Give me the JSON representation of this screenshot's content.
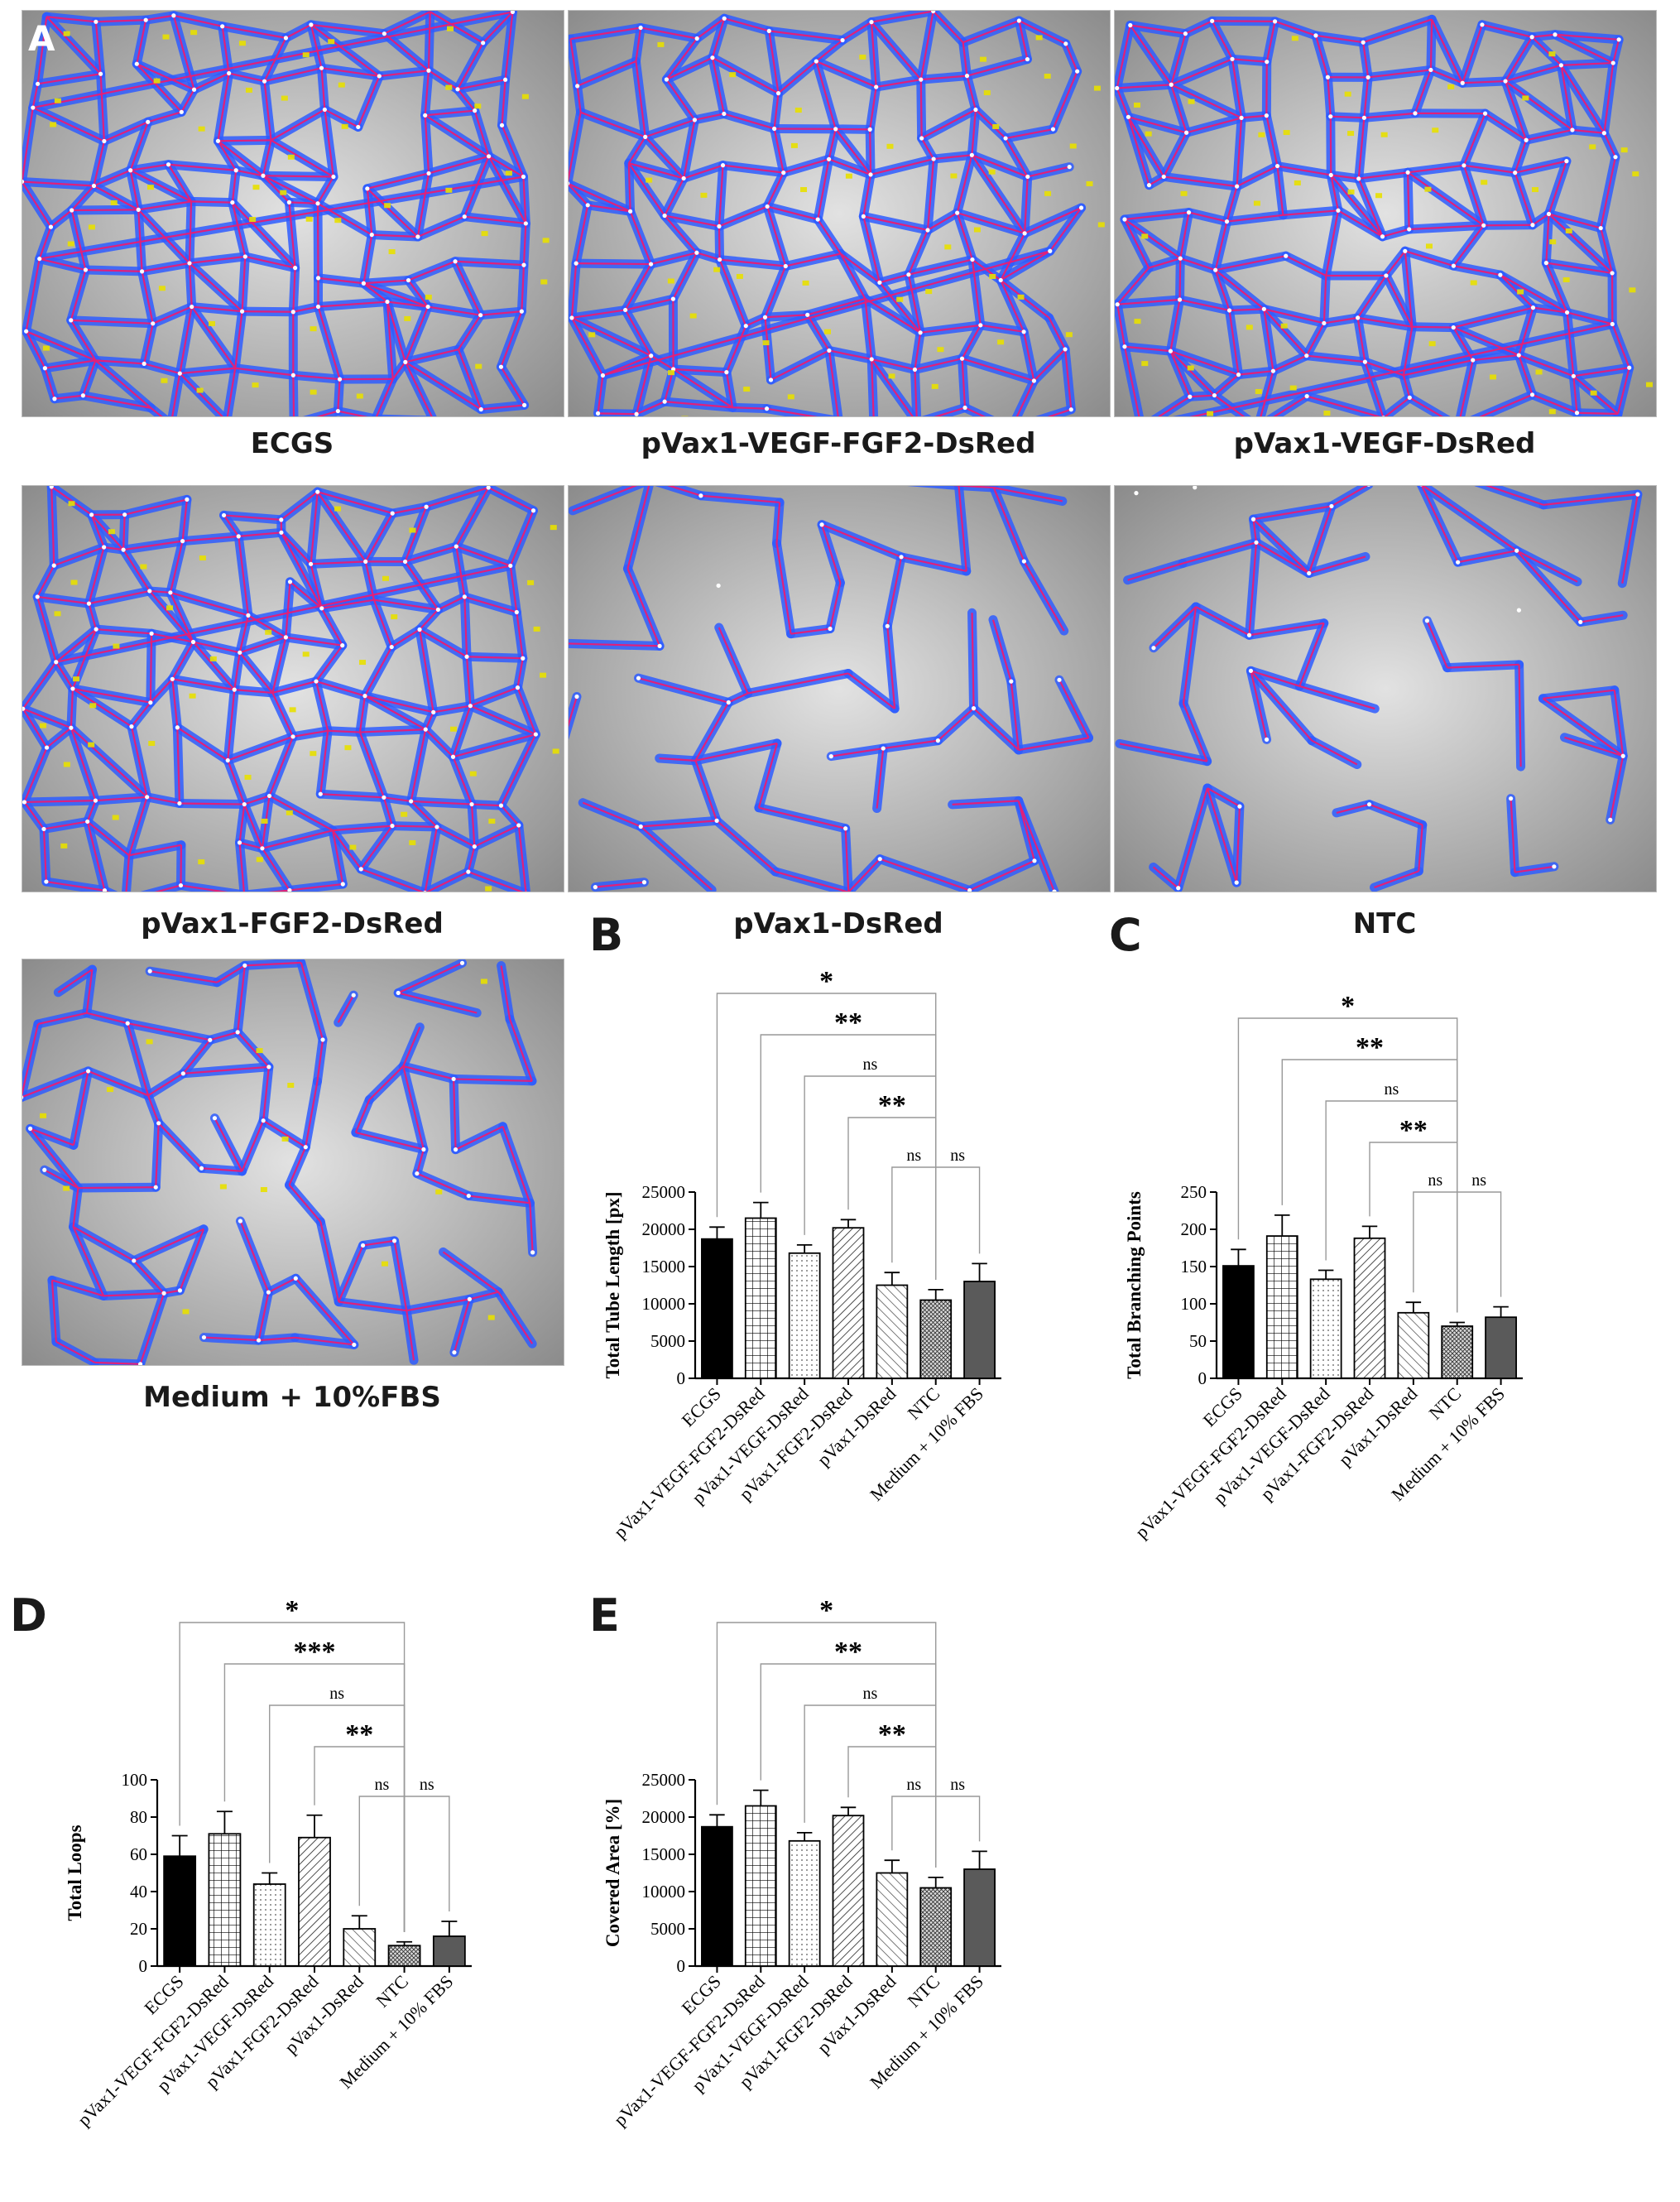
{
  "panel_a": {
    "letter": "A",
    "images": [
      {
        "label": "ECGS",
        "style": "dense"
      },
      {
        "label": "pVax1-VEGF-FGF2-DsRed",
        "style": "dense"
      },
      {
        "label": "pVax1-VEGF-DsRed",
        "style": "dense"
      },
      {
        "label": "pVax1-FGF2-DsRed",
        "style": "dense"
      },
      {
        "label": "pVax1-DsRed",
        "style": "sparse"
      },
      {
        "label": "NTC",
        "style": "sparse"
      },
      {
        "label": "Medium + 10%FBS",
        "style": "medium"
      }
    ],
    "colors": {
      "background": "#c4c4c4",
      "network": "#2f5dff",
      "skeleton": "#e0207a",
      "node": "#ffffff",
      "loop_label": "#e8e000"
    }
  },
  "chart_data": [
    {
      "id": "B",
      "letter": "B",
      "type": "bar",
      "ylabel": "Total Tube Length [px]",
      "categories": [
        "ECGS",
        "pVax1-VEGF-FGF2-DsRed",
        "pVax1-VEGF-DsRed",
        "pVax1-FGF2-DsRed",
        "pVax1-DsRed",
        "NTC",
        "Medium + 10% FBS"
      ],
      "values": [
        18700,
        21500,
        16800,
        20200,
        12500,
        10500,
        13000
      ],
      "errors": [
        1600,
        2100,
        1100,
        1100,
        1700,
        1400,
        2400
      ],
      "ylim": [
        0,
        25000
      ],
      "yticks": [
        0,
        5000,
        10000,
        15000,
        20000,
        25000
      ],
      "significance": [
        {
          "from": 0,
          "to": 5,
          "label": "*"
        },
        {
          "from": 1,
          "to": 5,
          "label": "**"
        },
        {
          "from": 2,
          "to": 5,
          "label": "ns"
        },
        {
          "from": 3,
          "to": 5,
          "label": "**"
        },
        {
          "from": 4,
          "to": 5,
          "label": "ns"
        },
        {
          "from": 5,
          "to": 6,
          "label": "ns"
        }
      ]
    },
    {
      "id": "C",
      "letter": "C",
      "type": "bar",
      "ylabel": "Total Branching Points",
      "categories": [
        "ECGS",
        "pVax1-VEGF-FGF2-DsRed",
        "pVax1-VEGF-DsRed",
        "pVax1-FGF2-DsRed",
        "pVax1-DsRed",
        "NTC",
        "Medium + 10% FBS"
      ],
      "values": [
        151,
        191,
        133,
        188,
        88,
        70,
        82
      ],
      "errors": [
        22,
        28,
        12,
        16,
        14,
        5,
        14
      ],
      "ylim": [
        0,
        250
      ],
      "yticks": [
        0,
        50,
        100,
        150,
        200,
        250
      ],
      "significance": [
        {
          "from": 0,
          "to": 5,
          "label": "*"
        },
        {
          "from": 1,
          "to": 5,
          "label": "**"
        },
        {
          "from": 2,
          "to": 5,
          "label": "ns"
        },
        {
          "from": 3,
          "to": 5,
          "label": "**"
        },
        {
          "from": 4,
          "to": 5,
          "label": "ns"
        },
        {
          "from": 5,
          "to": 6,
          "label": "ns"
        }
      ]
    },
    {
      "id": "D",
      "letter": "D",
      "type": "bar",
      "ylabel": "Total Loops",
      "categories": [
        "ECGS",
        "pVax1-VEGF-FGF2-DsRed",
        "pVax1-VEGF-DsRed",
        "pVax1-FGF2-DsRed",
        "pVax1-DsRed",
        "NTC",
        "Medium + 10% FBS"
      ],
      "values": [
        59,
        71,
        44,
        69,
        20,
        11,
        16
      ],
      "errors": [
        11,
        12,
        6,
        12,
        7,
        2,
        8
      ],
      "ylim": [
        0,
        100
      ],
      "yticks": [
        0,
        20,
        40,
        60,
        80,
        100
      ],
      "significance": [
        {
          "from": 0,
          "to": 5,
          "label": "*"
        },
        {
          "from": 1,
          "to": 5,
          "label": "***"
        },
        {
          "from": 2,
          "to": 5,
          "label": "ns"
        },
        {
          "from": 3,
          "to": 5,
          "label": "**"
        },
        {
          "from": 4,
          "to": 5,
          "label": "ns"
        },
        {
          "from": 5,
          "to": 6,
          "label": "ns"
        }
      ]
    },
    {
      "id": "E",
      "letter": "E",
      "type": "bar",
      "ylabel": "Covered Area [%]",
      "categories": [
        "ECGS",
        "pVax1-VEGF-FGF2-DsRed",
        "pVax1-VEGF-DsRed",
        "pVax1-FGF2-DsRed",
        "pVax1-DsRed",
        "NTC",
        "Medium + 10% FBS"
      ],
      "values": [
        18700,
        21500,
        16800,
        20200,
        12500,
        10500,
        13000
      ],
      "errors": [
        1600,
        2100,
        1100,
        1100,
        1700,
        1400,
        2400
      ],
      "ylim": [
        0,
        25000
      ],
      "yticks": [
        0,
        5000,
        10000,
        15000,
        20000,
        25000
      ],
      "significance": [
        {
          "from": 0,
          "to": 5,
          "label": "*"
        },
        {
          "from": 1,
          "to": 5,
          "label": "**"
        },
        {
          "from": 2,
          "to": 5,
          "label": "ns"
        },
        {
          "from": 3,
          "to": 5,
          "label": "**"
        },
        {
          "from": 4,
          "to": 5,
          "label": "ns"
        },
        {
          "from": 5,
          "to": 6,
          "label": "ns"
        }
      ]
    }
  ]
}
